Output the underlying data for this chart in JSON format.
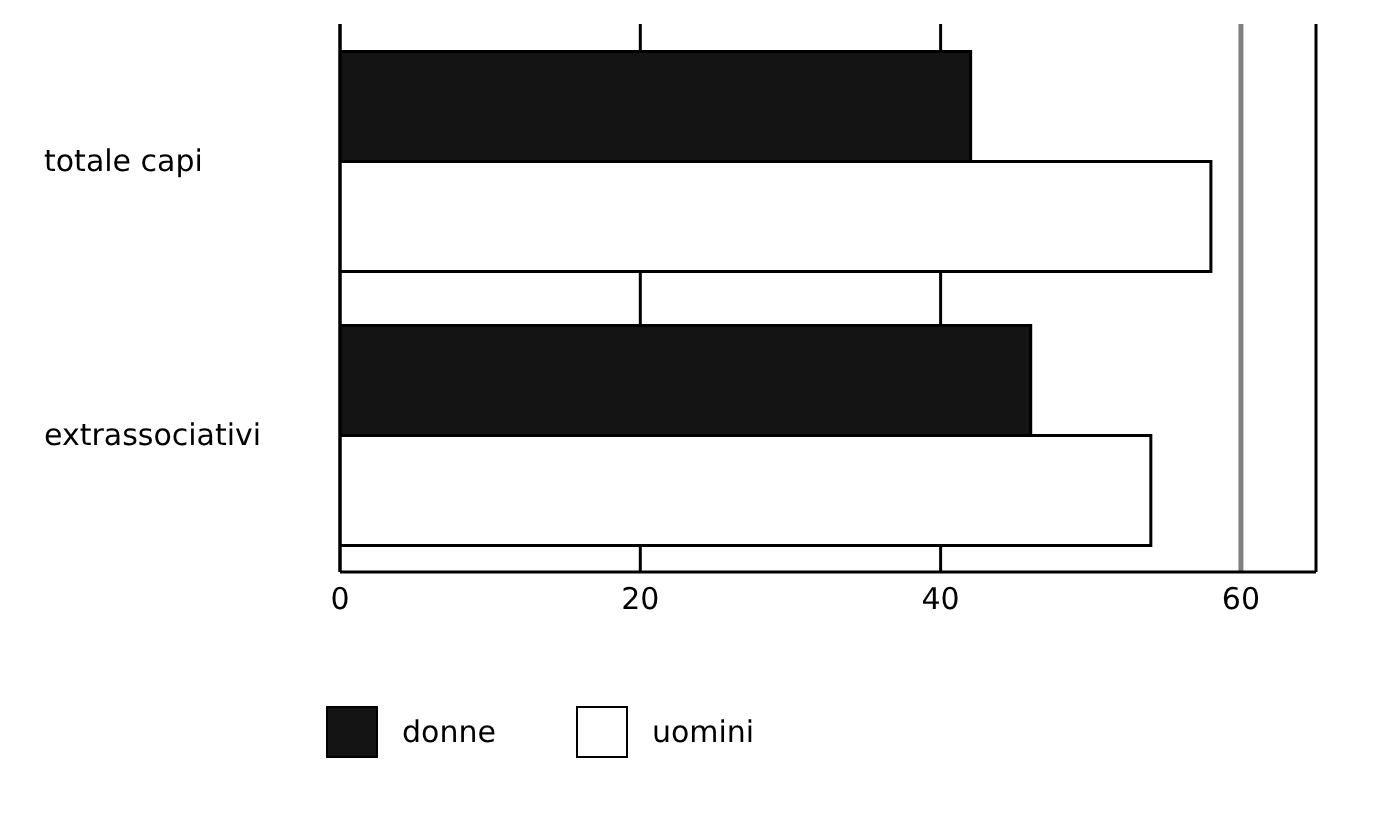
{
  "chart_data": {
    "type": "bar",
    "orientation": "horizontal",
    "categories": [
      "totale capi",
      "extrassociativi"
    ],
    "series": [
      {
        "name": "donne",
        "color": "#141414",
        "values": [
          42,
          46
        ]
      },
      {
        "name": "uomini",
        "color": "#ffffff",
        "values": [
          58,
          54
        ]
      }
    ],
    "xlim": [
      0,
      65
    ],
    "xticks": [
      0,
      20,
      40,
      60
    ],
    "grid": "x",
    "legend": "bottom left",
    "ref_lines": [
      {
        "axis": "x",
        "value": 60,
        "color": "#808080"
      }
    ]
  }
}
